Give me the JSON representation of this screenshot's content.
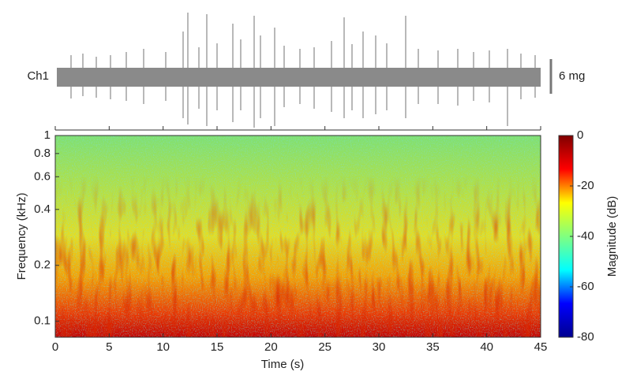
{
  "waveform": {
    "channel_label": "Ch1",
    "scale_bar_label": "6 mg"
  },
  "chart_data": {
    "type": "spectrogram",
    "xlabel": "Time (s)",
    "ylabel": "Frequency (kHz)",
    "xlim": [
      0,
      45
    ],
    "xticks": [
      0,
      5,
      10,
      15,
      20,
      25,
      30,
      35,
      40,
      45
    ],
    "ylim": [
      0.082,
      1
    ],
    "yticks": [
      0.1,
      0.2,
      0.4,
      0.6,
      0.8,
      1
    ],
    "log_y": true,
    "colorbar": {
      "label": "Magnitude (dB)",
      "lim": [
        -80,
        0
      ],
      "ticks": [
        -80,
        -60,
        -40,
        -20,
        0
      ],
      "colormap": "jet"
    }
  }
}
